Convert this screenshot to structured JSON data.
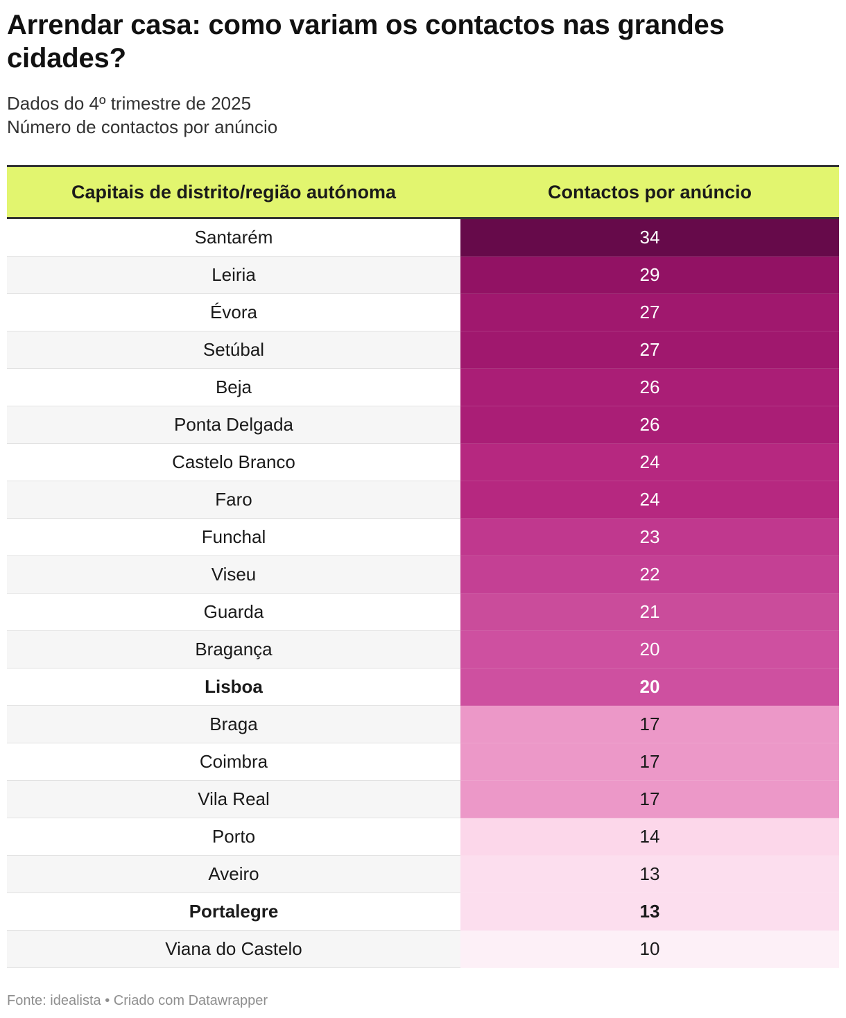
{
  "title": "Arrendar casa: como variam os contactos nas grandes cidades?",
  "subtitle_line1": "Dados do 4º trimestre de 2025",
  "subtitle_line2": "Número de contactos por anúncio",
  "footer": "Fonte: idealista • Criado com Datawrapper",
  "colors": {
    "header_bg": "#e2f56f",
    "scale_dark": "#660a4a",
    "scale_light": "#fdf0f7"
  },
  "chart_data": {
    "type": "table",
    "columns": [
      "Capitais de distrito/região autónoma",
      "Contactos por anúncio"
    ],
    "rows": [
      {
        "city": "Santarém",
        "value": 34,
        "bold": false
      },
      {
        "city": "Leiria",
        "value": 29,
        "bold": false
      },
      {
        "city": "Évora",
        "value": 27,
        "bold": false
      },
      {
        "city": "Setúbal",
        "value": 27,
        "bold": false
      },
      {
        "city": "Beja",
        "value": 26,
        "bold": false
      },
      {
        "city": "Ponta Delgada",
        "value": 26,
        "bold": false
      },
      {
        "city": "Castelo Branco",
        "value": 24,
        "bold": false
      },
      {
        "city": "Faro",
        "value": 24,
        "bold": false
      },
      {
        "city": "Funchal",
        "value": 23,
        "bold": false
      },
      {
        "city": "Viseu",
        "value": 22,
        "bold": false
      },
      {
        "city": "Guarda",
        "value": 21,
        "bold": false
      },
      {
        "city": "Bragança",
        "value": 20,
        "bold": false
      },
      {
        "city": "Lisboa",
        "value": 20,
        "bold": true
      },
      {
        "city": "Braga",
        "value": 17,
        "bold": false
      },
      {
        "city": "Coimbra",
        "value": 17,
        "bold": false
      },
      {
        "city": "Vila Real",
        "value": 17,
        "bold": false
      },
      {
        "city": "Porto",
        "value": 14,
        "bold": false
      },
      {
        "city": "Aveiro",
        "value": 13,
        "bold": false
      },
      {
        "city": "Portalegre",
        "value": 13,
        "bold": true
      },
      {
        "city": "Viana do Castelo",
        "value": 10,
        "bold": false
      }
    ]
  }
}
